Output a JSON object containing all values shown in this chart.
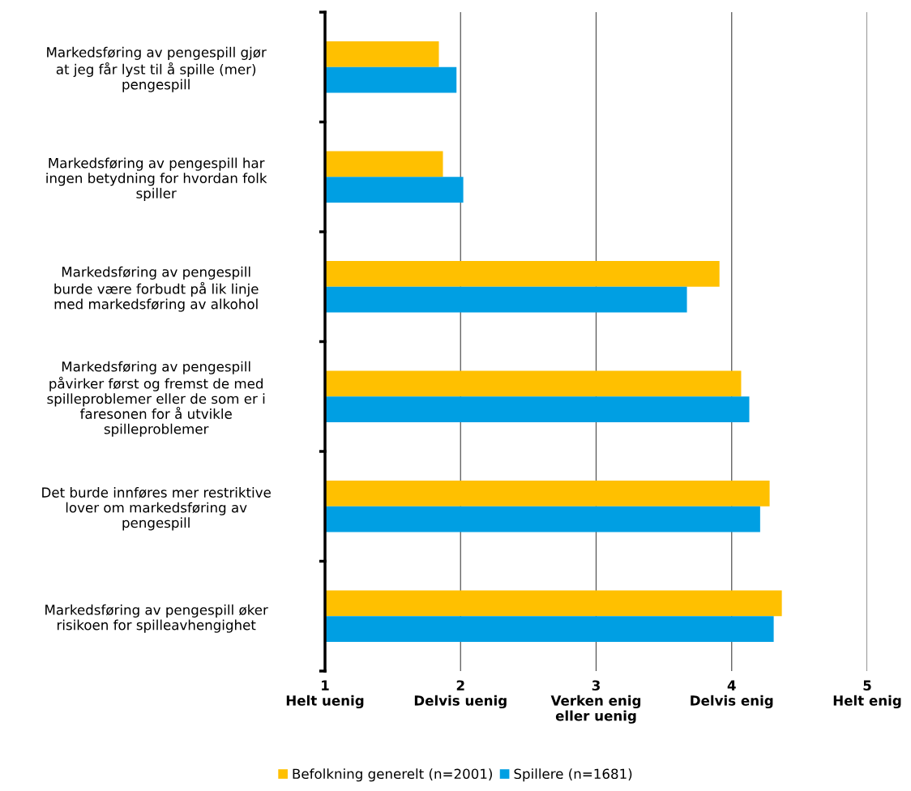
{
  "chart_data": {
    "type": "bar",
    "orientation": "horizontal",
    "categories": [
      "Markedsføring av pengespill gjør\nat jeg får lyst til å spille (mer)\npengespill",
      "Markedsføring av pengespill har\ningen betydning for hvordan folk\nspiller",
      "Markedsføring av pengespill\nburde være forbudt på lik linje\nmed markedsføring av alkohol",
      "Markedsføring av pengespill\npåvirker først og fremst de med\nspilleproblemer eller de som er i\nfaresonen for å utvikle\nspilleproblemer",
      "Det burde innføres mer restriktive\nlover om markedsføring av\npengespill",
      "Markedsføring av pengespill øker\nrisikoen for spilleavhengighet"
    ],
    "series": [
      {
        "name": "Befolkning generelt (n=2001)",
        "color": "#ffc000",
        "values": [
          1.84,
          1.87,
          3.91,
          4.07,
          4.28,
          4.37
        ]
      },
      {
        "name": "Spillere (n=1681)",
        "color": "#009fe3",
        "values": [
          1.97,
          2.02,
          3.67,
          4.13,
          4.21,
          4.31
        ]
      }
    ],
    "xlim": [
      1,
      5
    ],
    "xticks": [
      {
        "value": 1,
        "label": "1\nHelt uenig"
      },
      {
        "value": 2,
        "label": "2\nDelvis uenig"
      },
      {
        "value": 3,
        "label": "3\nVerken enig\neller uenig"
      },
      {
        "value": 4,
        "label": "4\nDelvis enig"
      },
      {
        "value": 5,
        "label": "5\nHelt enig"
      }
    ],
    "grid": "x",
    "legend": "bottom"
  }
}
